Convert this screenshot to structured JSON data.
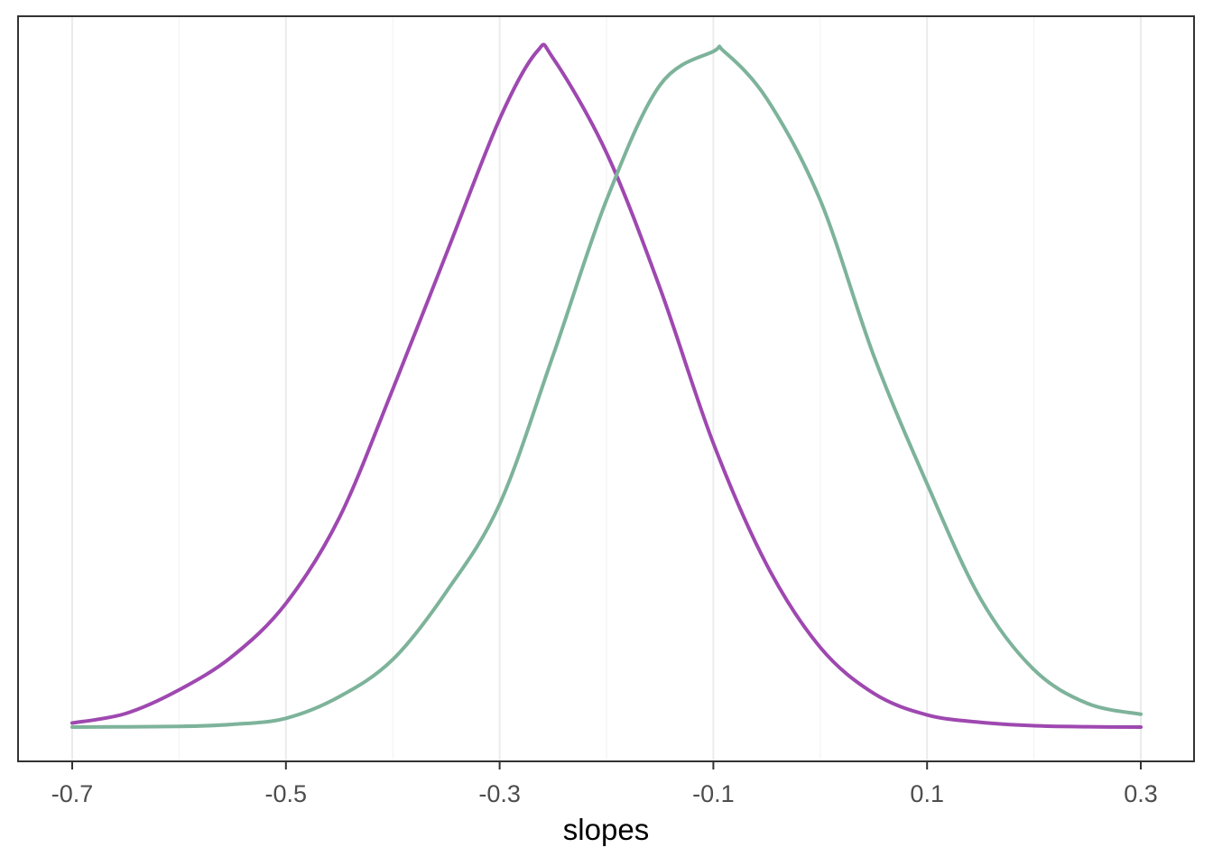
{
  "chart_data": {
    "type": "line",
    "xlabel": "slopes",
    "ylabel": "",
    "xlim": [
      -0.75,
      0.35
    ],
    "ylim": [
      0,
      1
    ],
    "x_ticks": [
      -0.7,
      -0.5,
      -0.3,
      -0.1,
      0.1,
      0.3
    ],
    "x_tick_labels": [
      "-0.7",
      "-0.5",
      "-0.3",
      "-0.1",
      "0.1",
      "0.3"
    ],
    "x_minor_gridlines": [
      -0.6,
      -0.4,
      -0.2,
      0.0,
      0.2
    ],
    "grid": "vertical only",
    "y_axis_visible": false,
    "legend": "none",
    "series": [
      {
        "color": "#9e48b0",
        "x": [
          -0.7,
          -0.65,
          -0.6,
          -0.55,
          -0.5,
          -0.45,
          -0.4,
          -0.35,
          -0.3,
          -0.265,
          -0.25,
          -0.2,
          -0.15,
          -0.1,
          -0.05,
          0.0,
          0.05,
          0.1,
          0.15,
          0.2,
          0.25,
          0.3
        ],
        "y": [
          0.006,
          0.02,
          0.055,
          0.105,
          0.183,
          0.31,
          0.5,
          0.7,
          0.9,
          1.0,
          0.99,
          0.85,
          0.65,
          0.42,
          0.24,
          0.118,
          0.05,
          0.018,
          0.007,
          0.002,
          0.0005,
          0.0
        ]
      },
      {
        "color": "#7db39a",
        "x": [
          -0.7,
          -0.6,
          -0.55,
          -0.5,
          -0.45,
          -0.4,
          -0.35,
          -0.3,
          -0.25,
          -0.2,
          -0.15,
          -0.1,
          -0.09,
          -0.05,
          0.0,
          0.05,
          0.1,
          0.15,
          0.2,
          0.25,
          0.3
        ],
        "y": [
          0.0,
          0.001,
          0.004,
          0.013,
          0.045,
          0.1,
          0.2,
          0.33,
          0.55,
          0.78,
          0.95,
          1.0,
          1.0,
          0.93,
          0.78,
          0.55,
          0.36,
          0.19,
          0.085,
          0.035,
          0.019
        ]
      }
    ]
  }
}
